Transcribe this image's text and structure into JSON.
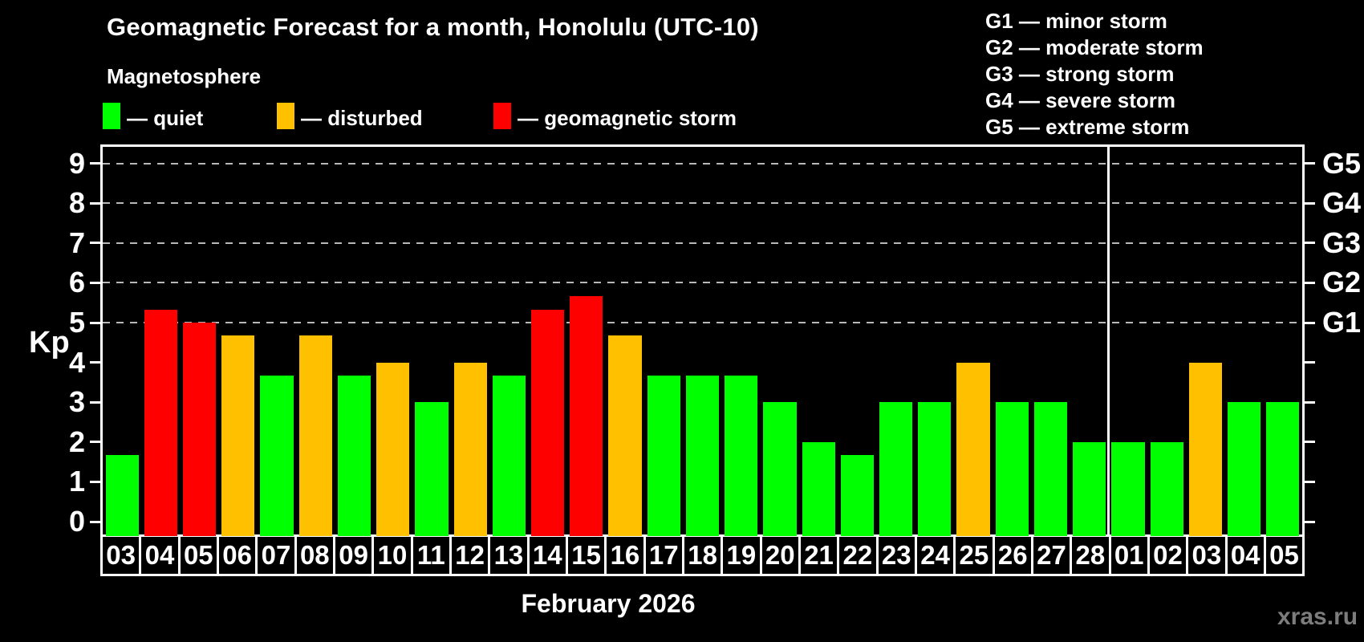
{
  "title": "Geomagnetic Forecast for a month, Honolulu (UTC-10)",
  "subtitle": "Magnetosphere",
  "legend": {
    "quiet": "— quiet",
    "disturbed": "— disturbed",
    "storm": "— geomagnetic storm"
  },
  "storm_scale": [
    "G1 — minor storm",
    "G2 — moderate storm",
    "G3 — strong storm",
    "G4 — severe storm",
    "G5 — extreme storm"
  ],
  "watermark": "xras.ru",
  "colors": {
    "quiet": "#00ff00",
    "disturbed": "#ffc000",
    "storm": "#ff0000",
    "axis": "#ffffff",
    "grid": "#b8b8b8",
    "watermark": "#7d7d7d",
    "background": "#000000"
  },
  "chart_data": {
    "type": "bar",
    "title": "Geomagnetic Forecast for a month, Honolulu (UTC-10)",
    "xlabel": "February 2026",
    "ylabel": "Kp",
    "categories": [
      "03",
      "04",
      "05",
      "06",
      "07",
      "08",
      "09",
      "10",
      "11",
      "12",
      "13",
      "14",
      "15",
      "16",
      "17",
      "18",
      "19",
      "20",
      "21",
      "22",
      "23",
      "24",
      "25",
      "26",
      "27",
      "28",
      "01",
      "02",
      "03",
      "04",
      "05"
    ],
    "values": [
      1.67,
      5.33,
      5.0,
      4.67,
      3.67,
      4.67,
      3.67,
      4.0,
      3.0,
      4.0,
      3.67,
      5.33,
      5.67,
      4.67,
      3.67,
      3.67,
      3.67,
      3.0,
      2.0,
      1.67,
      3.0,
      3.0,
      4.0,
      3.0,
      3.0,
      2.0,
      2.0,
      2.0,
      4.0,
      3.0,
      3.0
    ],
    "statuses": [
      "quiet",
      "storm",
      "storm",
      "disturbed",
      "quiet",
      "disturbed",
      "quiet",
      "disturbed",
      "quiet",
      "disturbed",
      "quiet",
      "storm",
      "storm",
      "disturbed",
      "quiet",
      "quiet",
      "quiet",
      "quiet",
      "quiet",
      "quiet",
      "quiet",
      "quiet",
      "disturbed",
      "quiet",
      "quiet",
      "quiet",
      "quiet",
      "quiet",
      "disturbed",
      "quiet",
      "quiet"
    ],
    "y_ticks": [
      0,
      1,
      2,
      3,
      4,
      5,
      6,
      7,
      8,
      9
    ],
    "ylim": [
      0,
      9.4
    ],
    "grid_levels": [
      5,
      6,
      7,
      8,
      9
    ],
    "g_labels": [
      "G1",
      "G2",
      "G3",
      "G4",
      "G5"
    ],
    "g_levels": [
      5,
      6,
      7,
      8,
      9
    ],
    "month_separator_after_index": 25,
    "legend_position": "top-left",
    "grid": "dashed horizontal at storm levels only"
  }
}
